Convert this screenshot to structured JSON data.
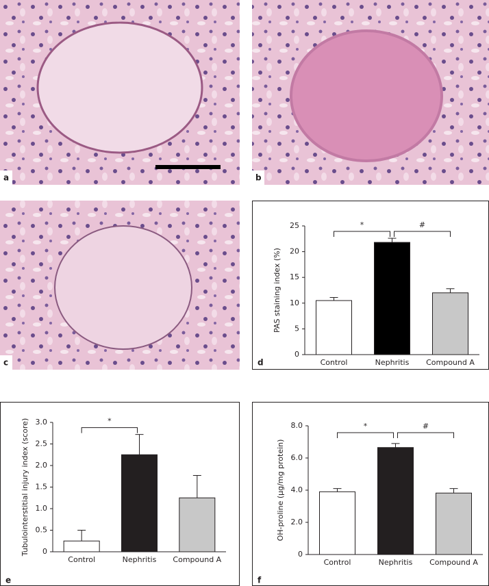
{
  "images": [
    {
      "label": "a"
    },
    {
      "label": "b"
    },
    {
      "label": "c"
    }
  ],
  "chart_data": [
    {
      "type": "bar",
      "panel": "d",
      "ylabel": "PAS staining index (%)",
      "categories": [
        "Control",
        "Nephritis",
        "Compound A"
      ],
      "values": [
        10.5,
        21.8,
        12.0
      ],
      "errors": [
        0.6,
        0.8,
        0.8
      ],
      "colors": [
        "#ffffff",
        "#000000",
        "#c8c8c8"
      ],
      "ylim": [
        0,
        25
      ],
      "yticks": [
        0,
        5,
        10,
        15,
        20,
        25
      ],
      "annotations": [
        "*",
        "#"
      ]
    },
    {
      "type": "bar",
      "panel": "e",
      "ylabel": "Tubulointerstitial injury index (score)",
      "categories": [
        "Control",
        "Nephritis",
        "Compound A"
      ],
      "values": [
        0.25,
        2.25,
        1.25
      ],
      "errors": [
        0.25,
        0.47,
        0.52
      ],
      "colors": [
        "#ffffff",
        "#231f20",
        "#c8c8c8"
      ],
      "ylim": [
        0,
        3
      ],
      "yticks": [
        0,
        0.5,
        {
          "value": 1,
          "label": "1.0"
        },
        1.5,
        {
          "value": 2,
          "label": "2.0"
        },
        2.5,
        {
          "value": 3,
          "label": "3.0"
        }
      ],
      "annotations": [
        "*"
      ]
    },
    {
      "type": "bar",
      "panel": "f",
      "ylabel": "OH-proline (µg/mg protein)",
      "categories": [
        "Control",
        "Nephritis",
        "Compound A"
      ],
      "values": [
        3.9,
        6.65,
        3.82
      ],
      "errors": [
        0.2,
        0.25,
        0.28
      ],
      "colors": [
        "#ffffff",
        "#231f20",
        "#c8c8c8"
      ],
      "ylim": [
        0,
        8
      ],
      "yticks": [
        0,
        {
          "value": 2,
          "label": "2.0"
        },
        {
          "value": 4,
          "label": "4.0"
        },
        {
          "value": 6,
          "label": "6.0"
        },
        {
          "value": 8,
          "label": "8.0"
        }
      ],
      "annotations": [
        "*",
        "#"
      ]
    }
  ]
}
